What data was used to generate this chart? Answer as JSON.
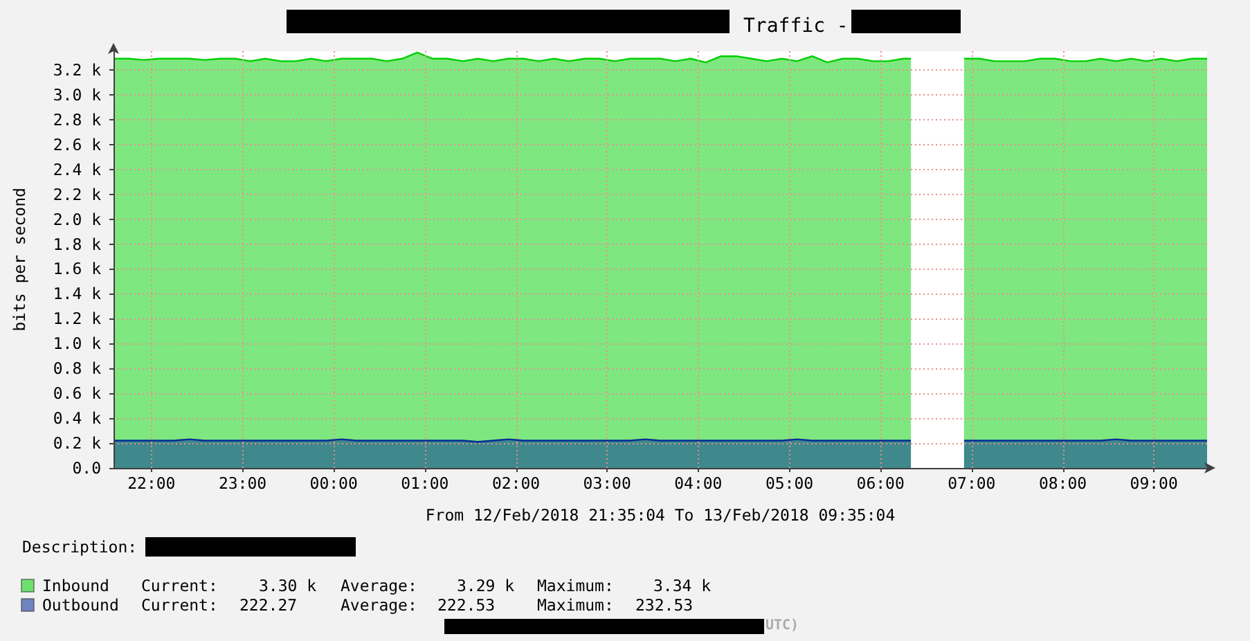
{
  "chart_data": {
    "type": "area",
    "title": "Traffic -",
    "xlabel": "From 12/Feb/2018 21:35:04 To 13/Feb/2018 09:35:04",
    "ylabel": "bits per second",
    "x": [
      "2018-02-12T21:35",
      "2018-02-12T21:45",
      "2018-02-12T21:55",
      "2018-02-12T22:05",
      "2018-02-12T22:15",
      "2018-02-12T22:25",
      "2018-02-12T22:35",
      "2018-02-12T22:45",
      "2018-02-12T22:55",
      "2018-02-12T23:05",
      "2018-02-12T23:15",
      "2018-02-12T23:25",
      "2018-02-12T23:35",
      "2018-02-12T23:45",
      "2018-02-12T23:55",
      "2018-02-13T00:05",
      "2018-02-13T00:15",
      "2018-02-13T00:25",
      "2018-02-13T00:35",
      "2018-02-13T00:45",
      "2018-02-13T00:55",
      "2018-02-13T01:05",
      "2018-02-13T01:15",
      "2018-02-13T01:25",
      "2018-02-13T01:35",
      "2018-02-13T01:45",
      "2018-02-13T01:55",
      "2018-02-13T02:05",
      "2018-02-13T02:15",
      "2018-02-13T02:25",
      "2018-02-13T02:35",
      "2018-02-13T02:45",
      "2018-02-13T02:55",
      "2018-02-13T03:05",
      "2018-02-13T03:15",
      "2018-02-13T03:25",
      "2018-02-13T03:35",
      "2018-02-13T03:45",
      "2018-02-13T03:55",
      "2018-02-13T04:05",
      "2018-02-13T04:15",
      "2018-02-13T04:25",
      "2018-02-13T04:35",
      "2018-02-13T04:45",
      "2018-02-13T04:55",
      "2018-02-13T05:05",
      "2018-02-13T05:15",
      "2018-02-13T05:25",
      "2018-02-13T05:35",
      "2018-02-13T05:45",
      "2018-02-13T05:55",
      "2018-02-13T06:05",
      "2018-02-13T06:15",
      "2018-02-13T06:20",
      "2018-02-13T06:40",
      "2018-02-13T06:55",
      "2018-02-13T07:05",
      "2018-02-13T07:15",
      "2018-02-13T07:25",
      "2018-02-13T07:35",
      "2018-02-13T07:45",
      "2018-02-13T07:55",
      "2018-02-13T08:05",
      "2018-02-13T08:15",
      "2018-02-13T08:25",
      "2018-02-13T08:35",
      "2018-02-13T08:45",
      "2018-02-13T08:55",
      "2018-02-13T09:05",
      "2018-02-13T09:15",
      "2018-02-13T09:25",
      "2018-02-13T09:35"
    ],
    "xlim": [
      "2018-02-12T21:35",
      "2018-02-13T09:35"
    ],
    "xticks": [
      {
        "value": "2018-02-12T22:00",
        "label": "22:00"
      },
      {
        "value": "2018-02-12T23:00",
        "label": "23:00"
      },
      {
        "value": "2018-02-13T00:00",
        "label": "00:00"
      },
      {
        "value": "2018-02-13T01:00",
        "label": "01:00"
      },
      {
        "value": "2018-02-13T02:00",
        "label": "02:00"
      },
      {
        "value": "2018-02-13T03:00",
        "label": "03:00"
      },
      {
        "value": "2018-02-13T04:00",
        "label": "04:00"
      },
      {
        "value": "2018-02-13T05:00",
        "label": "05:00"
      },
      {
        "value": "2018-02-13T06:00",
        "label": "06:00"
      },
      {
        "value": "2018-02-13T07:00",
        "label": "07:00"
      },
      {
        "value": "2018-02-13T08:00",
        "label": "08:00"
      },
      {
        "value": "2018-02-13T09:00",
        "label": "09:00"
      }
    ],
    "ylim": [
      0,
      3350
    ],
    "yticks": [
      {
        "value": 0,
        "label": "0.0"
      },
      {
        "value": 200,
        "label": "0.2 k"
      },
      {
        "value": 400,
        "label": "0.4 k"
      },
      {
        "value": 600,
        "label": "0.6 k"
      },
      {
        "value": 800,
        "label": "0.8 k"
      },
      {
        "value": 1000,
        "label": "1.0 k"
      },
      {
        "value": 1200,
        "label": "1.2 k"
      },
      {
        "value": 1400,
        "label": "1.4 k"
      },
      {
        "value": 1600,
        "label": "1.6 k"
      },
      {
        "value": 1800,
        "label": "1.8 k"
      },
      {
        "value": 2000,
        "label": "2.0 k"
      },
      {
        "value": 2200,
        "label": "2.2 k"
      },
      {
        "value": 2400,
        "label": "2.4 k"
      },
      {
        "value": 2600,
        "label": "2.6 k"
      },
      {
        "value": 2800,
        "label": "2.8 k"
      },
      {
        "value": 3000,
        "label": "3.0 k"
      },
      {
        "value": 3200,
        "label": "3.2 k"
      }
    ],
    "series": [
      {
        "name": "Inbound",
        "color": "#00cf00",
        "values": [
          3290,
          3290,
          3280,
          3290,
          3290,
          3290,
          3280,
          3290,
          3290,
          3270,
          3290,
          3270,
          3270,
          3290,
          3270,
          3290,
          3290,
          3290,
          3270,
          3290,
          3340,
          3290,
          3290,
          3270,
          3290,
          3270,
          3290,
          3290,
          3270,
          3290,
          3270,
          3290,
          3290,
          3270,
          3290,
          3290,
          3290,
          3270,
          3290,
          3260,
          3310,
          3310,
          3290,
          3270,
          3290,
          3270,
          3310,
          3260,
          3290,
          3290,
          3270,
          3270,
          3290,
          3290,
          null,
          3290,
          3290,
          3270,
          3270,
          3270,
          3290,
          3290,
          3270,
          3270,
          3290,
          3270,
          3290,
          3270,
          3290,
          3270,
          3290,
          3290
        ]
      },
      {
        "name": "Outbound",
        "color": "#002a97",
        "values": [
          220,
          220,
          220,
          220,
          220,
          230,
          220,
          220,
          220,
          220,
          220,
          220,
          220,
          220,
          220,
          230,
          220,
          220,
          220,
          220,
          220,
          220,
          220,
          220,
          210,
          220,
          230,
          220,
          220,
          220,
          220,
          220,
          220,
          220,
          220,
          230,
          220,
          220,
          220,
          220,
          220,
          220,
          220,
          220,
          220,
          230,
          220,
          220,
          220,
          220,
          220,
          220,
          220,
          220,
          null,
          220,
          220,
          220,
          220,
          220,
          220,
          220,
          220,
          220,
          220,
          230,
          220,
          220,
          220,
          220,
          220,
          220
        ]
      }
    ],
    "grid": true,
    "legend": "bottom left",
    "annotations": [
      "Description:",
      "Current:",
      "3.30 k",
      "Average:",
      "3.29 k",
      "Maximum:",
      "3.34 k",
      "Current:",
      "222.27",
      "Average:",
      "222.53",
      "Maximum:",
      "232.53",
      "UTC)"
    ]
  }
}
